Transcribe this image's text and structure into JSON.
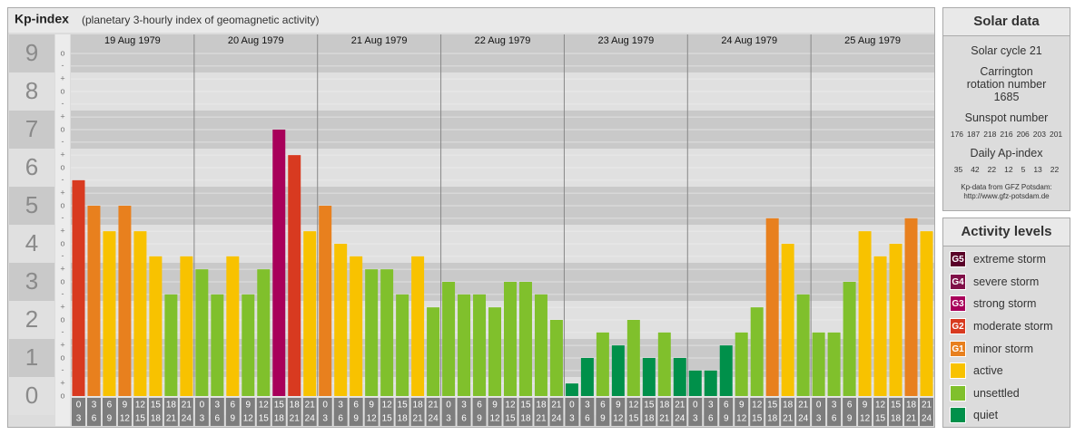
{
  "chart_data": {
    "type": "bar",
    "title": "Kp-index",
    "subtitle": "(planetary 3-hourly index of geomagnetic activity)",
    "ylim": [
      0,
      9.5
    ],
    "yticks": [
      0,
      1,
      2,
      3,
      4,
      5,
      6,
      7,
      8,
      9
    ],
    "yminor": [
      {
        "value": 0,
        "label": "o"
      },
      {
        "value": 0.33,
        "label": "+"
      },
      {
        "value": 0.67,
        "label": "-"
      },
      {
        "value": 1,
        "label": "o"
      },
      {
        "value": 1.33,
        "label": "+"
      },
      {
        "value": 1.67,
        "label": "-"
      },
      {
        "value": 2,
        "label": "o"
      },
      {
        "value": 2.33,
        "label": "+"
      },
      {
        "value": 2.67,
        "label": "-"
      },
      {
        "value": 3,
        "label": "o"
      },
      {
        "value": 3.33,
        "label": "+"
      },
      {
        "value": 3.67,
        "label": "-"
      },
      {
        "value": 4,
        "label": "o"
      },
      {
        "value": 4.33,
        "label": "+"
      },
      {
        "value": 4.67,
        "label": "-"
      },
      {
        "value": 5,
        "label": "o"
      },
      {
        "value": 5.33,
        "label": "+"
      },
      {
        "value": 5.67,
        "label": "-"
      },
      {
        "value": 6,
        "label": "o"
      },
      {
        "value": 6.33,
        "label": "+"
      },
      {
        "value": 6.67,
        "label": "-"
      },
      {
        "value": 7,
        "label": "o"
      },
      {
        "value": 7.33,
        "label": "+"
      },
      {
        "value": 7.67,
        "label": "-"
      },
      {
        "value": 8,
        "label": "o"
      },
      {
        "value": 8.33,
        "label": "+"
      },
      {
        "value": 8.67,
        "label": "-"
      },
      {
        "value": 9,
        "label": "o"
      }
    ],
    "intervals": [
      [
        "0",
        "3"
      ],
      [
        "3",
        "6"
      ],
      [
        "6",
        "9"
      ],
      [
        "9",
        "12"
      ],
      [
        "12",
        "15"
      ],
      [
        "15",
        "18"
      ],
      [
        "18",
        "21"
      ],
      [
        "21",
        "24"
      ]
    ],
    "days": [
      {
        "date": "19 Aug 1979",
        "values": [
          5.67,
          5,
          4.33,
          5,
          4.33,
          3.67,
          2.67,
          3.67
        ],
        "colors": [
          "#d83a20",
          "#e8801e",
          "#f8c200",
          "#e8801e",
          "#f8c200",
          "#f8c200",
          "#80c02c",
          "#f8c200"
        ]
      },
      {
        "date": "20 Aug 1979",
        "values": [
          3.33,
          2.67,
          3.67,
          2.67,
          3.33,
          7,
          6.33,
          4.33
        ],
        "colors": [
          "#80c02c",
          "#80c02c",
          "#f8c200",
          "#80c02c",
          "#80c02c",
          "#a8005a",
          "#d83a20",
          "#f8c200"
        ]
      },
      {
        "date": "21 Aug 1979",
        "values": [
          5,
          4,
          3.67,
          3.33,
          3.33,
          2.67,
          3.67,
          2.33
        ],
        "colors": [
          "#e8801e",
          "#f8c200",
          "#f8c200",
          "#80c02c",
          "#80c02c",
          "#80c02c",
          "#f8c200",
          "#80c02c"
        ]
      },
      {
        "date": "22 Aug 1979",
        "values": [
          3,
          2.67,
          2.67,
          2.33,
          3,
          3,
          2.67,
          2
        ],
        "colors": [
          "#80c02c",
          "#80c02c",
          "#80c02c",
          "#80c02c",
          "#80c02c",
          "#80c02c",
          "#80c02c",
          "#80c02c"
        ]
      },
      {
        "date": "23 Aug 1979",
        "values": [
          0.33,
          1,
          1.67,
          1.33,
          2,
          1,
          1.67,
          1
        ],
        "colors": [
          "#00904a",
          "#00904a",
          "#80c02c",
          "#00904a",
          "#80c02c",
          "#00904a",
          "#80c02c",
          "#00904a"
        ]
      },
      {
        "date": "24 Aug 1979",
        "values": [
          0.67,
          0.67,
          1.33,
          1.67,
          2.33,
          4.67,
          4,
          2.67
        ],
        "colors": [
          "#00904a",
          "#00904a",
          "#00904a",
          "#80c02c",
          "#80c02c",
          "#e8801e",
          "#f8c200",
          "#80c02c"
        ]
      },
      {
        "date": "25 Aug 1979",
        "values": [
          1.67,
          1.67,
          3,
          4.33,
          3.67,
          4,
          4.67,
          4.33
        ],
        "colors": [
          "#80c02c",
          "#80c02c",
          "#80c02c",
          "#f8c200",
          "#f8c200",
          "#f8c200",
          "#e8801e",
          "#f8c200"
        ]
      }
    ]
  },
  "solar": {
    "title": "Solar data",
    "cycle": "Solar cycle 21",
    "rotation": "Carrington rotation number 1685",
    "sunspot_label": "Sunspot number",
    "sunspot": [
      176,
      187,
      218,
      216,
      206,
      203,
      201
    ],
    "ap_label": "Daily Ap-index",
    "ap": [
      35,
      42,
      22,
      12,
      5,
      13,
      22
    ],
    "source": "Kp-data from GFZ Potsdam:",
    "url": "http://www.gfz-potsdam.de"
  },
  "levels": {
    "title": "Activity levels",
    "items": [
      {
        "code": "G5",
        "label": "extreme storm",
        "color": "#5a0028"
      },
      {
        "code": "G4",
        "label": "severe storm",
        "color": "#801048"
      },
      {
        "code": "G3",
        "label": "strong storm",
        "color": "#a8005a"
      },
      {
        "code": "G2",
        "label": "moderate storm",
        "color": "#d83a20"
      },
      {
        "code": "G1",
        "label": "minor storm",
        "color": "#e8801e"
      },
      {
        "code": null,
        "label": "active",
        "color": "#f8c200"
      },
      {
        "code": null,
        "label": "unsettled",
        "color": "#80c02c"
      },
      {
        "code": null,
        "label": "quiet",
        "color": "#00904a"
      }
    ]
  }
}
